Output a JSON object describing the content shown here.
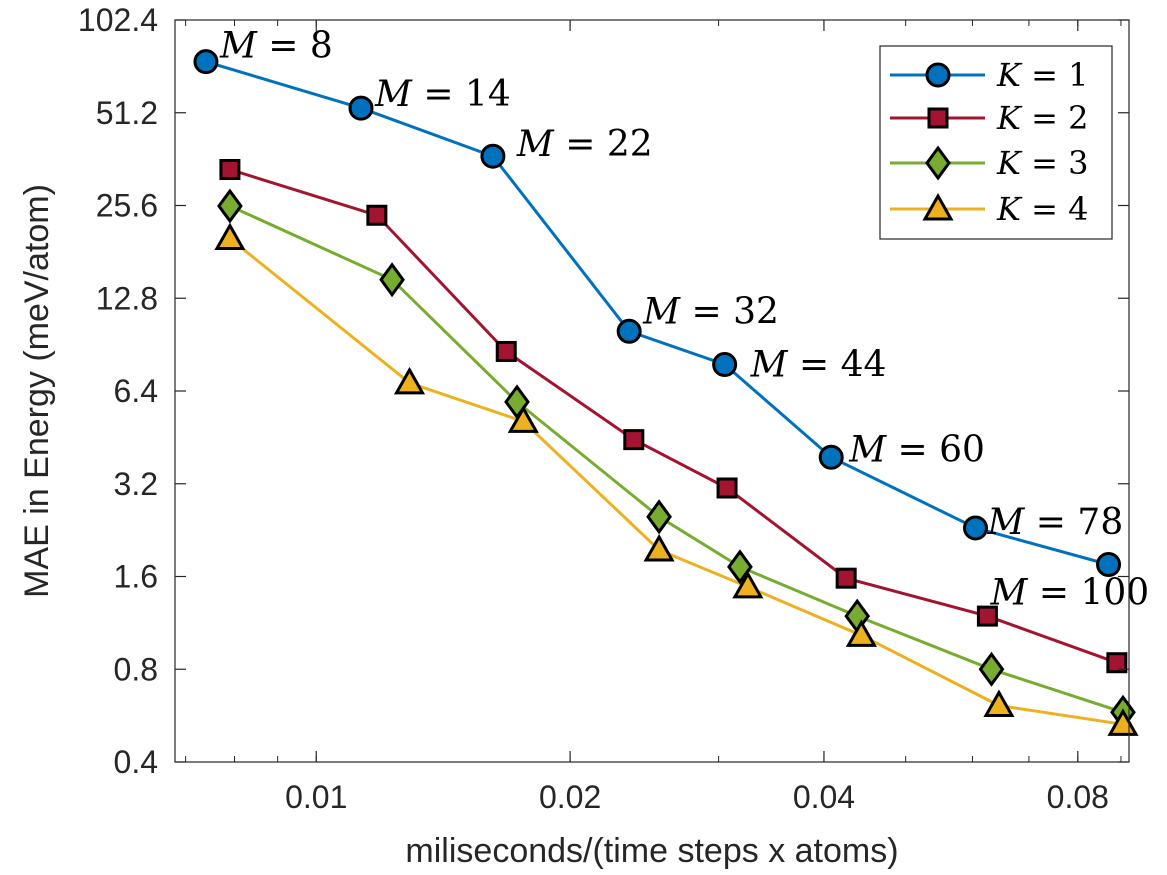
{
  "chart_data": {
    "type": "line",
    "xscale": "log",
    "yscale": "log",
    "xlabel": "miliseconds/(time steps x atoms)",
    "ylabel": "MAE in Energy (meV/atom)",
    "xlim": [
      0.0068,
      0.092
    ],
    "ylim": [
      0.4,
      102.4
    ],
    "xticks": [
      0.01,
      0.02,
      0.04,
      0.08
    ],
    "xtick_labels": [
      "0.01",
      "0.02",
      "0.04",
      "0.08"
    ],
    "yticks": [
      0.4,
      0.8,
      1.6,
      3.2,
      6.4,
      12.8,
      25.6,
      51.2,
      102.4
    ],
    "ytick_labels": [
      "0.4",
      "0.8",
      "1.6",
      "3.2",
      "6.4",
      "12.8",
      "25.6",
      "51.2",
      "102.4"
    ],
    "legend_position": "top-right",
    "series": [
      {
        "name": "K = 1",
        "legend_var": "K",
        "legend_val": "1",
        "color": "#0072BD",
        "face": "#0072BD",
        "marker": "circle",
        "x": [
          0.0074,
          0.0113,
          0.0162,
          0.0235,
          0.0305,
          0.0408,
          0.0605,
          0.087
        ],
        "y": [
          75,
          53,
          37,
          10.0,
          7.8,
          3.9,
          2.3,
          1.75
        ]
      },
      {
        "name": "K = 2",
        "legend_var": "K",
        "legend_val": "2",
        "color": "#A2142F",
        "face": "#A2142F",
        "marker": "square",
        "x": [
          0.0079,
          0.0118,
          0.0168,
          0.0238,
          0.0307,
          0.0425,
          0.0625,
          0.089
        ],
        "y": [
          33.5,
          23.8,
          8.6,
          4.45,
          3.1,
          1.58,
          1.19,
          0.84
        ]
      },
      {
        "name": "K = 3",
        "legend_var": "K",
        "legend_val": "3",
        "color": "#77AC30",
        "face": "#77AC30",
        "marker": "diamond",
        "x": [
          0.0079,
          0.0123,
          0.0173,
          0.0255,
          0.0318,
          0.0438,
          0.0632,
          0.0905
        ],
        "y": [
          25.5,
          14.7,
          5.9,
          2.5,
          1.72,
          1.19,
          0.8,
          0.58
        ]
      },
      {
        "name": "K = 4",
        "legend_var": "K",
        "legend_val": "4",
        "color": "#EDB120",
        "face": "#EDB120",
        "marker": "triangle",
        "x": [
          0.0079,
          0.0129,
          0.0176,
          0.0255,
          0.0325,
          0.0443,
          0.0645,
          0.0905
        ],
        "y": [
          20.0,
          6.8,
          5.1,
          1.95,
          1.48,
          1.03,
          0.61,
          0.53
        ]
      }
    ],
    "annotations": [
      {
        "var": "M",
        "val": "8",
        "x": 0.0074,
        "y": 75
      },
      {
        "var": "M",
        "val": "14",
        "x": 0.0113,
        "y": 53
      },
      {
        "var": "M",
        "val": "22",
        "x": 0.0162,
        "y": 37
      },
      {
        "var": "M",
        "val": "32",
        "x": 0.0235,
        "y": 10.0
      },
      {
        "var": "M",
        "val": "44",
        "x": 0.0305,
        "y": 7.8
      },
      {
        "var": "M",
        "val": "60",
        "x": 0.0408,
        "y": 3.9
      },
      {
        "var": "M",
        "val": "78",
        "x": 0.0605,
        "y": 2.3
      },
      {
        "var": "M",
        "val": "100",
        "x": 0.087,
        "y": 1.75
      }
    ]
  }
}
